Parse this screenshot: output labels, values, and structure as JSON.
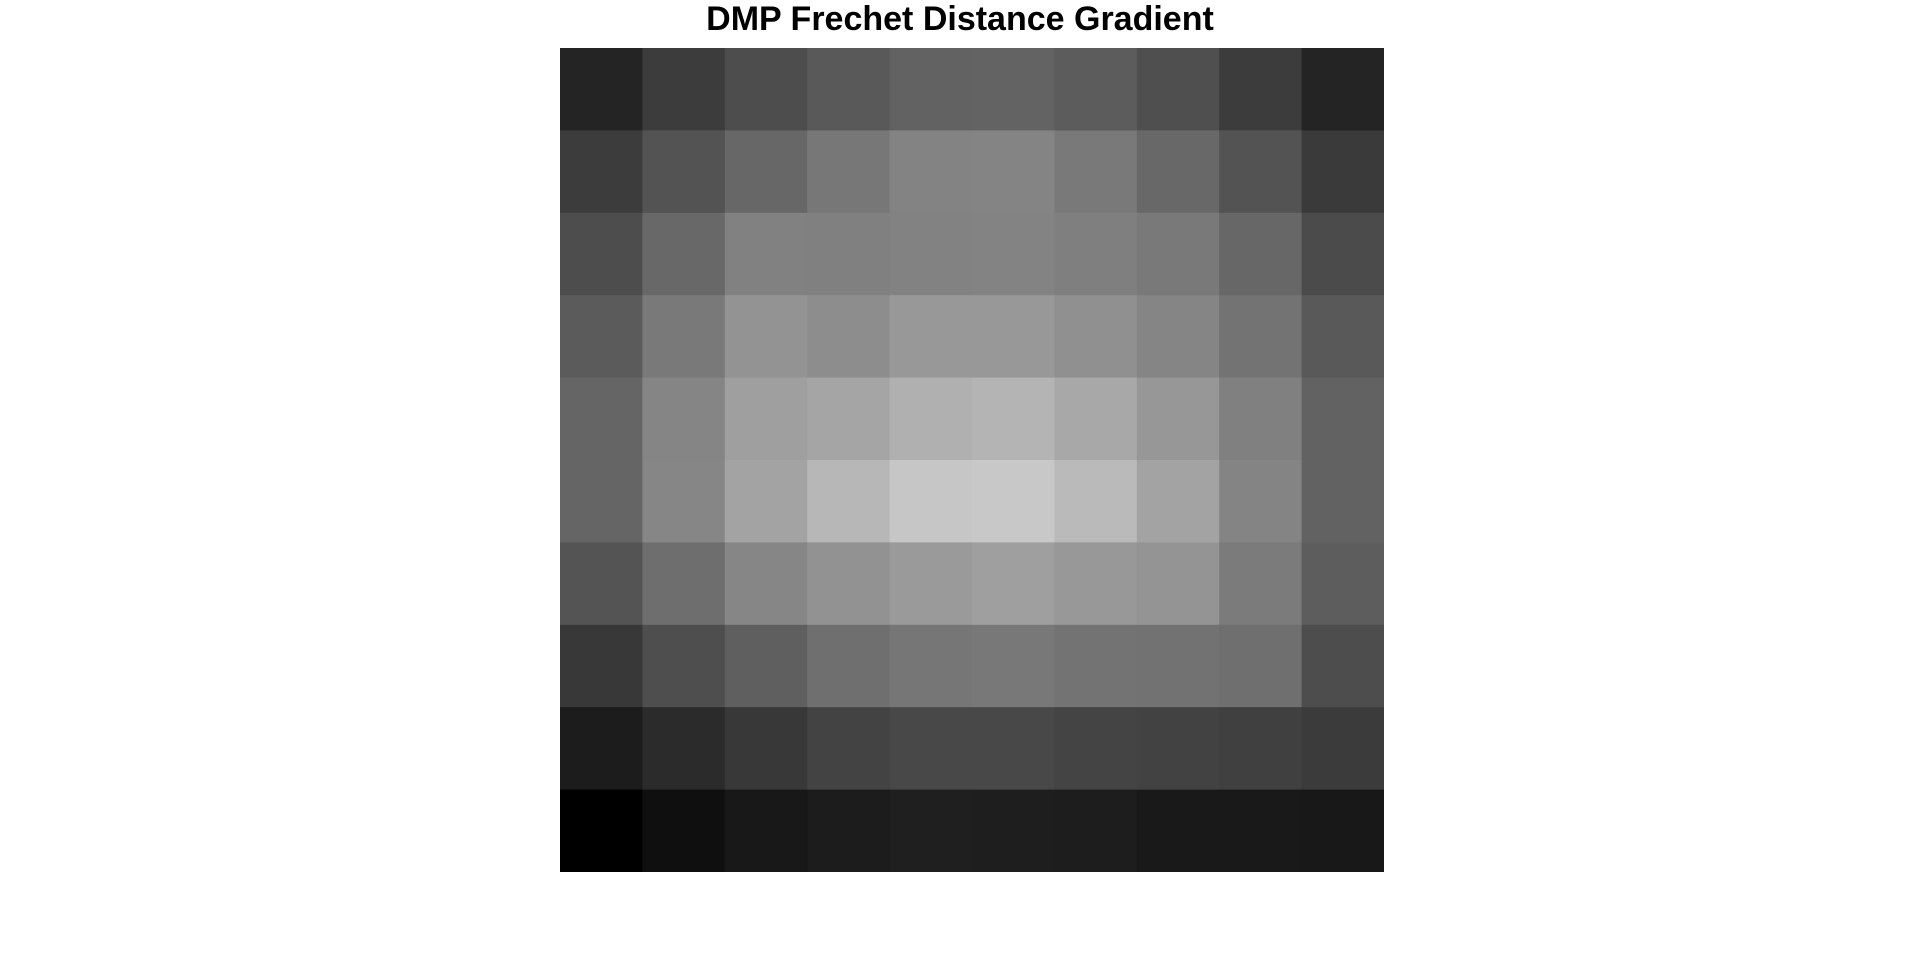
{
  "chart_data": {
    "type": "heatmap",
    "title": "DMP Frechet Distance Gradient",
    "xlabel": "",
    "ylabel": "",
    "colormap": "gray",
    "axes_visible": false,
    "vmin": 0,
    "vmax": 200,
    "values": [
      [
        36,
        60,
        77,
        89,
        98,
        99,
        92,
        79,
        60,
        36
      ],
      [
        60,
        83,
        103,
        119,
        131,
        132,
        121,
        104,
        83,
        58
      ],
      [
        77,
        104,
        129,
        128,
        130,
        131,
        127,
        121,
        103,
        75
      ],
      [
        91,
        121,
        147,
        141,
        152,
        152,
        144,
        133,
        115,
        89
      ],
      [
        101,
        133,
        159,
        165,
        176,
        180,
        168,
        151,
        128,
        98
      ],
      [
        101,
        134,
        163,
        183,
        198,
        200,
        186,
        163,
        132,
        98
      ],
      [
        84,
        110,
        134,
        146,
        154,
        159,
        152,
        148,
        123,
        93
      ],
      [
        56,
        78,
        95,
        111,
        118,
        120,
        115,
        114,
        111,
        77
      ],
      [
        28,
        43,
        56,
        67,
        72,
        72,
        68,
        66,
        64,
        59
      ],
      [
        0,
        15,
        24,
        28,
        31,
        30,
        29,
        25,
        25,
        24
      ]
    ]
  }
}
